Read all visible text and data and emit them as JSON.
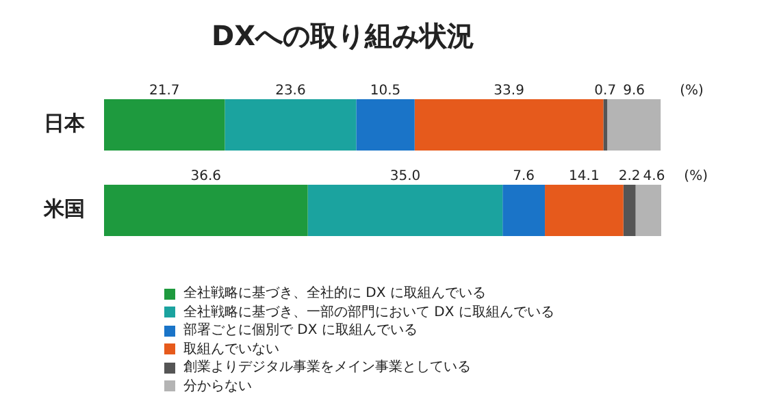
{
  "chart_data": {
    "type": "bar",
    "orientation": "horizontal",
    "stacked": true,
    "title": "DXへの取り組み状況",
    "categories": [
      "日本",
      "米国"
    ],
    "series": [
      {
        "name": "全社戦略に基づき、全社的に DX に取組んでいる",
        "color": "#1e9a3e",
        "values": [
          21.7,
          36.6
        ],
        "value_labels": [
          "21.7",
          "36.6"
        ]
      },
      {
        "name": "全社戦略に基づき、一部の部門において DX に取組んでいる",
        "color": "#1ba39f",
        "values": [
          23.6,
          35.0
        ],
        "value_labels": [
          "23.6",
          "35.0"
        ]
      },
      {
        "name": "部署ごとに個別で DX に取組んでいる",
        "color": "#1a74c8",
        "values": [
          10.5,
          7.6
        ],
        "value_labels": [
          "10.5",
          "7.6"
        ]
      },
      {
        "name": "取組んでいない",
        "color": "#e65a1c",
        "values": [
          33.9,
          14.1
        ],
        "value_labels": [
          "33.9",
          "14.1"
        ]
      },
      {
        "name": "創業よりデジタル事業をメイン事業としている",
        "color": "#555555",
        "values": [
          0.7,
          2.2
        ],
        "value_labels": [
          "0.7",
          "2.2"
        ]
      },
      {
        "name": "分からない",
        "color": "#b4b4b4",
        "values": [
          9.6,
          4.6
        ],
        "value_labels": [
          "9.6",
          "4.6"
        ]
      }
    ],
    "tick_labels": "y",
    "legend": "bottom",
    "grid": false,
    "annotations": [
      "(%)",
      "(%)"
    ]
  }
}
